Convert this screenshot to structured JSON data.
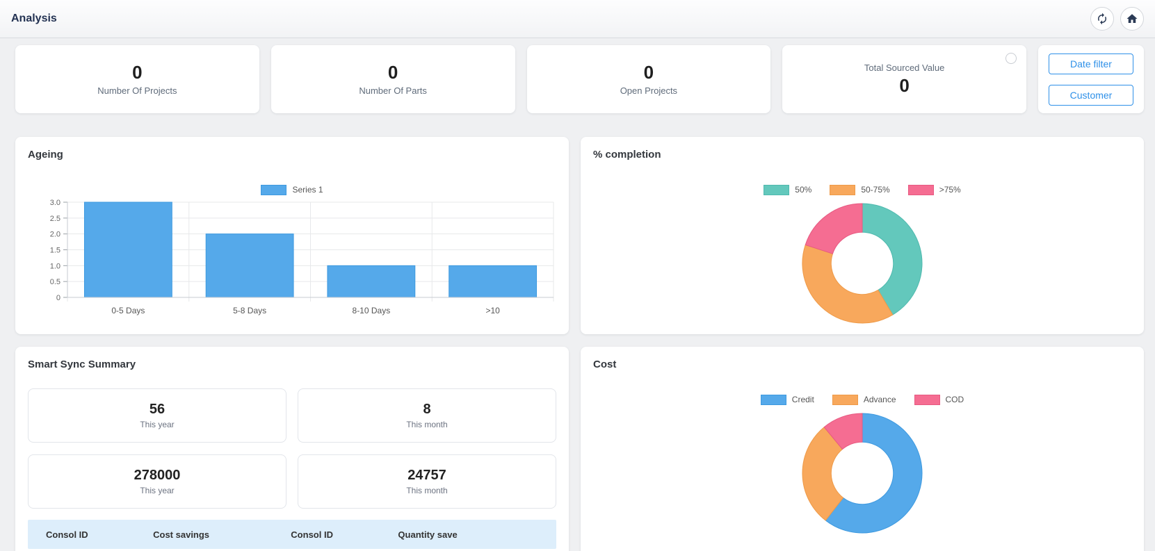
{
  "header": {
    "title": "Analysis",
    "refresh_tooltip": "refresh",
    "home_tooltip": "home"
  },
  "stat_cards": [
    {
      "value": "0",
      "label": "Number Of Projects"
    },
    {
      "value": "0",
      "label": "Number Of Parts"
    },
    {
      "value": "0",
      "label": "Open Projects"
    },
    {
      "value": "0",
      "label": "Total Sourced Value"
    }
  ],
  "filters": {
    "date_filter_label": "Date filter",
    "customer_label": "Customer"
  },
  "smart_sync": {
    "title": "Smart Sync Summary",
    "stats": [
      {
        "value": "56",
        "label": "This year"
      },
      {
        "value": "8",
        "label": "This month"
      },
      {
        "value": "278000",
        "label": "This year"
      },
      {
        "value": "24757",
        "label": "This month"
      }
    ],
    "table": {
      "columns": [
        "Consol ID",
        "Cost savings",
        "Consol ID",
        "Quantity save"
      ]
    }
  },
  "chart_data": [
    {
      "id": "ageing",
      "type": "bar",
      "title": "Ageing",
      "categories": [
        "0-5 Days",
        "5-8 Days",
        "8-10 Days",
        ">10"
      ],
      "series": [
        {
          "name": "Series 1",
          "values": [
            3,
            2,
            1,
            1
          ]
        }
      ],
      "xlabel": "",
      "ylabel": "",
      "ylim": [
        0,
        3
      ],
      "yticks": [
        "0",
        "0.5",
        "1.0",
        "1.5",
        "2.0",
        "2.5",
        "3.0"
      ],
      "grid": true,
      "legend_position": "top",
      "color": "#55A9EA",
      "border": "#3D99DF"
    },
    {
      "id": "completion",
      "type": "pie",
      "title": "% completion",
      "labels": [
        "50%",
        "50-75%",
        ">75%"
      ],
      "values": [
        41.5,
        38.5,
        20
      ],
      "units": "percent",
      "donut_hole": 0.52,
      "legend_position": "top",
      "colors": [
        "#63C8BC",
        "#F8A85C",
        "#F56D92"
      ],
      "borders": [
        "#4FB9AE",
        "#EE9A48",
        "#E75981"
      ]
    },
    {
      "id": "cost",
      "type": "pie",
      "title": "Cost",
      "labels": [
        "Credit",
        "Advance",
        "COD"
      ],
      "values": [
        60.5,
        28.5,
        11
      ],
      "units": "percent",
      "donut_hole": 0.52,
      "legend_position": "top",
      "colors": [
        "#55A9EA",
        "#F8A85C",
        "#F56D92"
      ],
      "borders": [
        "#3D99DF",
        "#EE9A48",
        "#E75981"
      ]
    }
  ],
  "colors": {
    "accent_blue": "#2e90e8",
    "table_header_bg": "#ddeefb",
    "page_bg": "#eff0f2",
    "title_navy": "#233252"
  }
}
